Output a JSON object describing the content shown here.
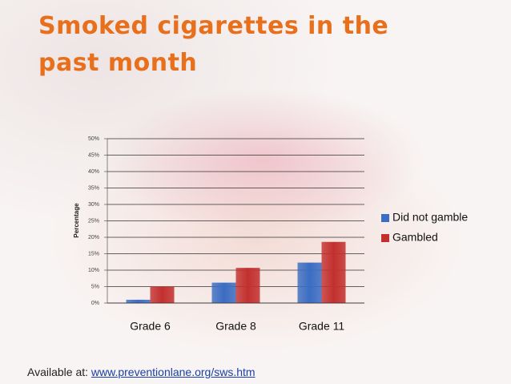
{
  "chart_data": {
    "type": "bar",
    "title": "Smoked cigarettes in the past month",
    "y_label": "Percentage",
    "categories": [
      "Grade 6",
      "Grade 8",
      "Grade 11"
    ],
    "series": [
      {
        "name": "Did not gamble",
        "color": "#3b6dc2",
        "values": [
          1,
          6.2,
          12.3
        ]
      },
      {
        "name": "Gambled",
        "color": "#c2302e",
        "values": [
          5,
          10.7,
          18.6
        ]
      }
    ],
    "ylim": [
      0,
      50
    ],
    "yticks": [
      {
        "value": 0,
        "label": "0%"
      },
      {
        "value": 5,
        "label": "5%"
      },
      {
        "value": 10,
        "label": "10%"
      },
      {
        "value": 15,
        "label": "15%"
      },
      {
        "value": 20,
        "label": "20%"
      },
      {
        "value": 25,
        "label": "25%"
      },
      {
        "value": 30,
        "label": "30%"
      },
      {
        "value": 35,
        "label": "35%"
      },
      {
        "value": 40,
        "label": "40%"
      },
      {
        "value": 45,
        "label": "45%"
      },
      {
        "value": 50,
        "label": "50%"
      }
    ],
    "grid": true,
    "legend": "right"
  },
  "footer": {
    "text": "Available at:",
    "link": "www.preventionlane.org/sws.htm"
  }
}
